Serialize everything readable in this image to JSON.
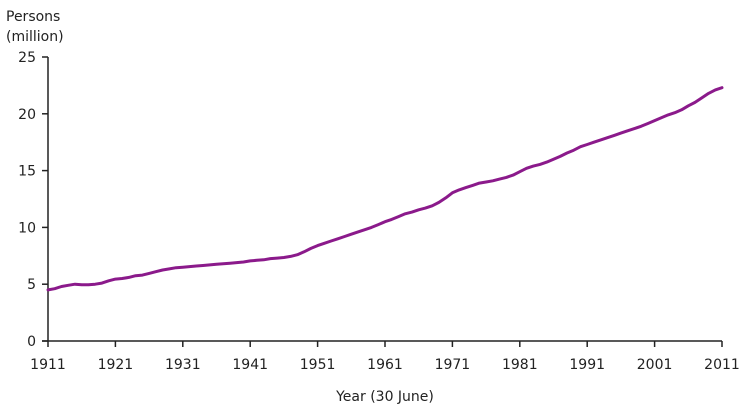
{
  "chart_data": {
    "type": "line",
    "title": "",
    "ylabel": [
      "Persons",
      "(million)"
    ],
    "xlabel": "Year (30 June)",
    "xlim": [
      1911,
      2011
    ],
    "ylim": [
      0,
      25
    ],
    "x_ticks": [
      1911,
      1921,
      1931,
      1941,
      1951,
      1961,
      1971,
      1981,
      1991,
      2001,
      2011
    ],
    "x_tick_labels": [
      "1911",
      "1921",
      "1931",
      "1941",
      "1951",
      "1961",
      "1971",
      "1981",
      "1991",
      "2001",
      "2011"
    ],
    "y_ticks": [
      0,
      5,
      10,
      15,
      20,
      25
    ],
    "y_tick_labels": [
      "0",
      "5",
      "10",
      "15",
      "20",
      "25"
    ],
    "grid": false,
    "legend": "none",
    "series_color": "#8b1a8b",
    "series": [
      {
        "x": [
          1911,
          1912,
          1913,
          1914,
          1915,
          1916,
          1917,
          1918,
          1919,
          1920,
          1921,
          1922,
          1923,
          1924,
          1925,
          1926,
          1927,
          1928,
          1929,
          1930,
          1931,
          1932,
          1933,
          1934,
          1935,
          1936,
          1937,
          1938,
          1939,
          1940,
          1941,
          1942,
          1943,
          1944,
          1945,
          1946,
          1947,
          1948,
          1949,
          1950,
          1951,
          1952,
          1953,
          1954,
          1955,
          1956,
          1957,
          1958,
          1959,
          1960,
          1961,
          1962,
          1963,
          1964,
          1965,
          1966,
          1967,
          1968,
          1969,
          1970,
          1971,
          1972,
          1973,
          1974,
          1975,
          1976,
          1977,
          1978,
          1979,
          1980,
          1981,
          1982,
          1983,
          1984,
          1985,
          1986,
          1987,
          1988,
          1989,
          1990,
          1991,
          1992,
          1993,
          1994,
          1995,
          1996,
          1997,
          1998,
          1999,
          2000,
          2001,
          2002,
          2003,
          2004,
          2005,
          2006,
          2007,
          2008,
          2009,
          2010,
          2011
        ],
        "values": [
          4.5,
          4.6,
          4.8,
          4.9,
          5.0,
          4.95,
          4.95,
          5.0,
          5.1,
          5.3,
          5.45,
          5.5,
          5.6,
          5.75,
          5.8,
          5.95,
          6.1,
          6.25,
          6.35,
          6.45,
          6.5,
          6.55,
          6.6,
          6.65,
          6.7,
          6.75,
          6.8,
          6.85,
          6.9,
          6.95,
          7.05,
          7.1,
          7.15,
          7.25,
          7.3,
          7.35,
          7.45,
          7.6,
          7.85,
          8.15,
          8.4,
          8.6,
          8.8,
          9.0,
          9.2,
          9.4,
          9.6,
          9.8,
          10.0,
          10.25,
          10.5,
          10.7,
          10.95,
          11.2,
          11.35,
          11.55,
          11.7,
          11.9,
          12.2,
          12.6,
          13.05,
          13.3,
          13.5,
          13.7,
          13.9,
          14.0,
          14.1,
          14.25,
          14.4,
          14.6,
          14.9,
          15.2,
          15.4,
          15.55,
          15.75,
          16.0,
          16.25,
          16.55,
          16.8,
          17.1,
          17.3,
          17.5,
          17.7,
          17.9,
          18.1,
          18.3,
          18.5,
          18.7,
          18.9,
          19.15,
          19.4,
          19.65,
          19.9,
          20.1,
          20.35,
          20.7,
          21.0,
          21.4,
          21.8,
          22.1,
          22.3
        ]
      }
    ]
  }
}
